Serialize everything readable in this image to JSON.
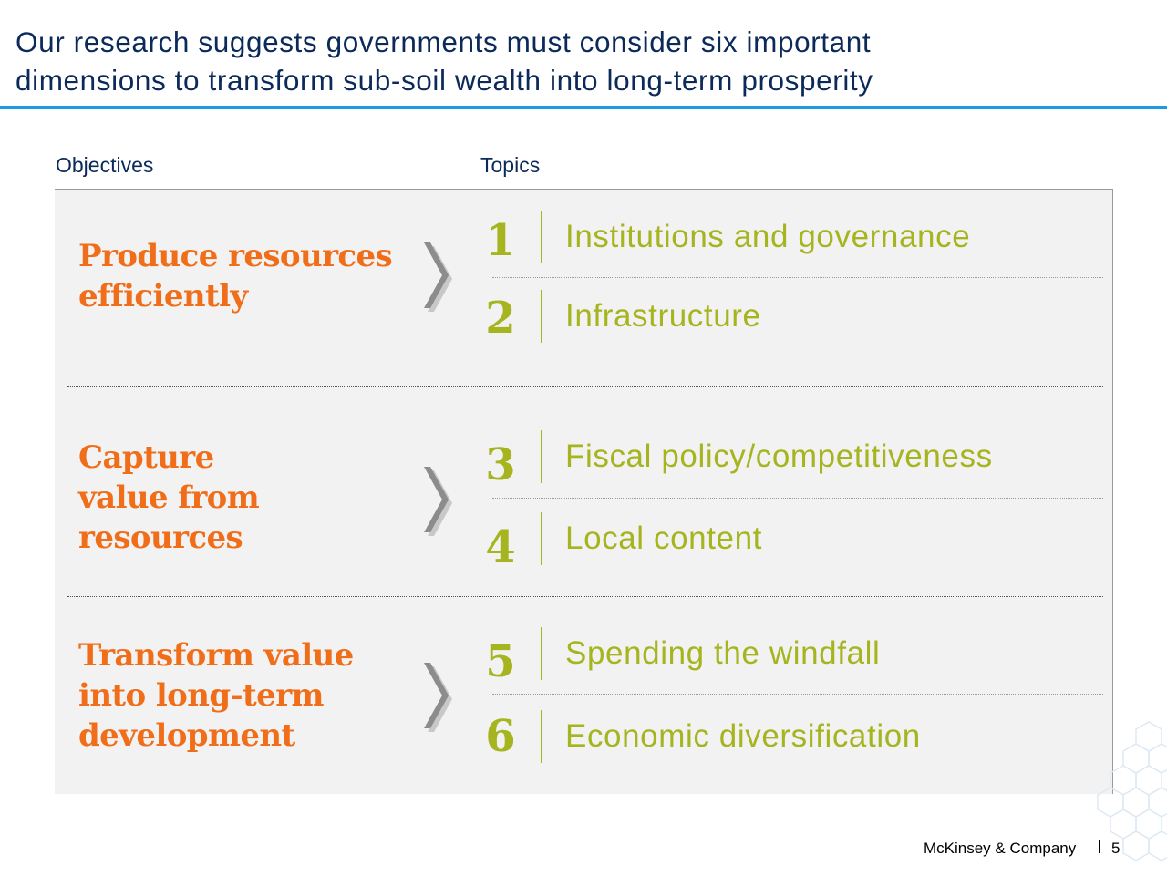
{
  "header": {
    "title_line1": "Our research suggests governments must consider six important",
    "title_line2": "dimensions to transform sub-soil wealth into long-term prosperity"
  },
  "columns": {
    "objectives_label": "Objectives",
    "topics_label": "Topics"
  },
  "objectives": [
    {
      "lines": [
        "Produce resources",
        "efficiently"
      ]
    },
    {
      "lines": [
        "Capture",
        "value from",
        "resources"
      ]
    },
    {
      "lines": [
        "Transform value",
        "into long-term",
        "development"
      ]
    }
  ],
  "topics": [
    {
      "number": "1",
      "label": "Institutions and governance"
    },
    {
      "number": "2",
      "label": "Infrastructure"
    },
    {
      "number": "3",
      "label": "Fiscal policy/competitiveness"
    },
    {
      "number": "4",
      "label": "Local content"
    },
    {
      "number": "5",
      "label": "Spending the windfall"
    },
    {
      "number": "6",
      "label": "Economic diversification"
    }
  ],
  "footer": {
    "brand": "McKinsey & Company",
    "page": "5"
  },
  "colors": {
    "title": "#0b2a5a",
    "accent_rule": "#1c9be0",
    "objective": "#f06e1a",
    "topic": "#a6b51f",
    "panel": "#f2f2f2",
    "chevron": "#8c8c8c"
  },
  "icons": {
    "chevron": "chevron-right-icon",
    "decoration": "hexagon-pattern-icon"
  }
}
